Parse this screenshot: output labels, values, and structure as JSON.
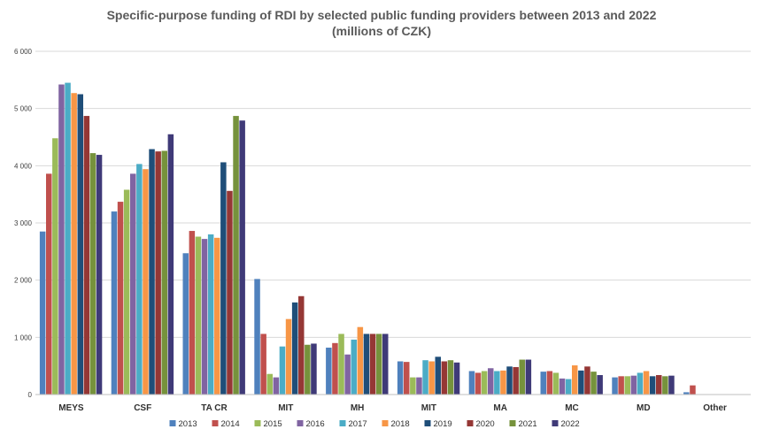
{
  "chart_data": {
    "type": "bar",
    "title": "Specific-purpose funding of RDI by selected public funding providers between 2013 and 2022",
    "subtitle": "(millions of CZK)",
    "xlabel": "",
    "ylabel": "",
    "ylim": [
      0,
      6000
    ],
    "yticks": [
      {
        "value": 0,
        "label": "0"
      },
      {
        "value": 1000,
        "label": "1 000"
      },
      {
        "value": 2000,
        "label": "2 000"
      },
      {
        "value": 3000,
        "label": "3 000"
      },
      {
        "value": 4000,
        "label": "4 000"
      },
      {
        "value": 5000,
        "label": "5 000"
      },
      {
        "value": 6000,
        "label": "6 000"
      }
    ],
    "grid": true,
    "legend_position": "bottom",
    "categories": [
      "MEYS",
      "CSF",
      "TA CR",
      "MIT",
      "MH",
      "MIT",
      "MA",
      "MC",
      "MD",
      "Other"
    ],
    "series": [
      {
        "name": "2013",
        "color": "#4f81bd",
        "values": [
          2850,
          3200,
          2470,
          2020,
          820,
          580,
          410,
          400,
          300,
          40
        ]
      },
      {
        "name": "2014",
        "color": "#c0504d",
        "values": [
          3860,
          3370,
          2860,
          1060,
          900,
          570,
          380,
          410,
          320,
          160
        ]
      },
      {
        "name": "2015",
        "color": "#9bbb59",
        "values": [
          4480,
          3580,
          2760,
          360,
          1060,
          300,
          410,
          380,
          320,
          0
        ]
      },
      {
        "name": "2016",
        "color": "#8064a2",
        "values": [
          5420,
          3860,
          2720,
          300,
          700,
          300,
          460,
          280,
          330,
          0
        ]
      },
      {
        "name": "2017",
        "color": "#4bacc6",
        "values": [
          5450,
          4030,
          2800,
          840,
          960,
          600,
          410,
          270,
          380,
          0
        ]
      },
      {
        "name": "2018",
        "color": "#f79646",
        "values": [
          5270,
          3940,
          2740,
          1320,
          1180,
          580,
          420,
          510,
          410,
          0
        ]
      },
      {
        "name": "2019",
        "color": "#1f4e79",
        "values": [
          5250,
          4290,
          4060,
          1610,
          1060,
          660,
          490,
          420,
          320,
          0
        ]
      },
      {
        "name": "2020",
        "color": "#953735",
        "values": [
          4870,
          4250,
          3560,
          1720,
          1060,
          580,
          480,
          490,
          340,
          0
        ]
      },
      {
        "name": "2021",
        "color": "#76923c",
        "values": [
          4220,
          4260,
          4870,
          870,
          1060,
          600,
          610,
          400,
          320,
          0
        ]
      },
      {
        "name": "2022",
        "color": "#3f3a78",
        "values": [
          4190,
          4550,
          4790,
          890,
          1060,
          560,
          610,
          340,
          330,
          0
        ]
      }
    ]
  }
}
